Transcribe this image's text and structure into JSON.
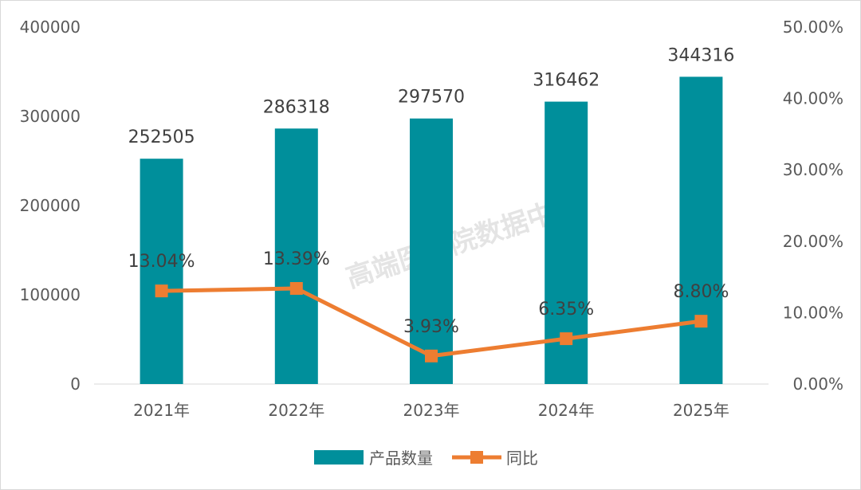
{
  "chart_data": {
    "type": "bar",
    "categories": [
      "2021年",
      "2022年",
      "2023年",
      "2024年",
      "2025年"
    ],
    "series": [
      {
        "name": "产品数量",
        "type": "bar",
        "axis": "left",
        "color": "#008f9b",
        "values": [
          252505,
          286318,
          297570,
          316462,
          344316
        ],
        "labels": [
          "252505",
          "286318",
          "297570",
          "316462",
          "344316"
        ]
      },
      {
        "name": "同比",
        "type": "line",
        "axis": "right",
        "color": "#ed7d31",
        "values": [
          13.04,
          13.39,
          3.93,
          6.35,
          8.8
        ],
        "labels": [
          "13.04%",
          "13.39%",
          "3.93%",
          "6.35%",
          "8.80%"
        ]
      }
    ],
    "ylim": [
      0,
      400000
    ],
    "y2lim": [
      0,
      50
    ],
    "y_ticks": [
      "0",
      "100000",
      "200000",
      "300000",
      "400000"
    ],
    "y2_ticks": [
      "0.00%",
      "10.00%",
      "20.00%",
      "30.00%",
      "40.00%",
      "50.00%"
    ],
    "grid": false,
    "legend_position": "bottom"
  },
  "watermark": "高端医械院数据中心"
}
